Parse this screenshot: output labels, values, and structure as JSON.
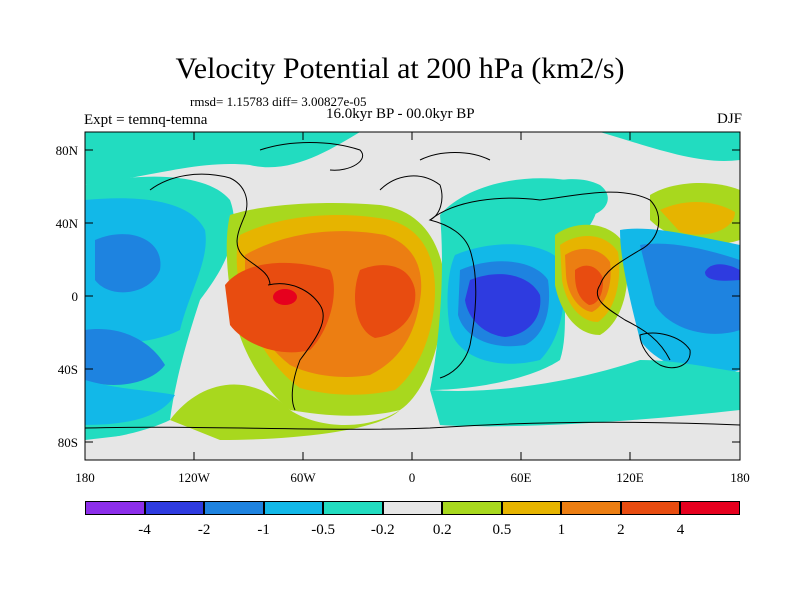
{
  "map": {
    "title": "Velocity Potential at 200 hPa (km2/s)",
    "stats": "rmsd= 1.15783 diff= 3.00827e-05",
    "left_label": "Expt = temnq-temna",
    "center_label": "16.0kyr BP - 00.0kyr BP",
    "right_label": "DJF",
    "lat_labels": [
      "80N",
      "40N",
      "0",
      "40S",
      "80S"
    ],
    "lon_labels": [
      "180",
      "120W",
      "60W",
      "0",
      "60E",
      "120E",
      "180"
    ],
    "colorbar": {
      "labels": [
        "-4",
        "-2",
        "-1",
        "-0.5",
        "-0.2",
        "0.2",
        "0.5",
        "1",
        "2",
        "4"
      ],
      "colors": [
        "#8c2eea",
        "#2e3be0",
        "#1e83e0",
        "#12b8e8",
        "#22dcc0",
        "#e6e6e6",
        "#a8d81e",
        "#e6b400",
        "#ec7e12",
        "#e84c10",
        "#e6001e"
      ]
    }
  }
}
